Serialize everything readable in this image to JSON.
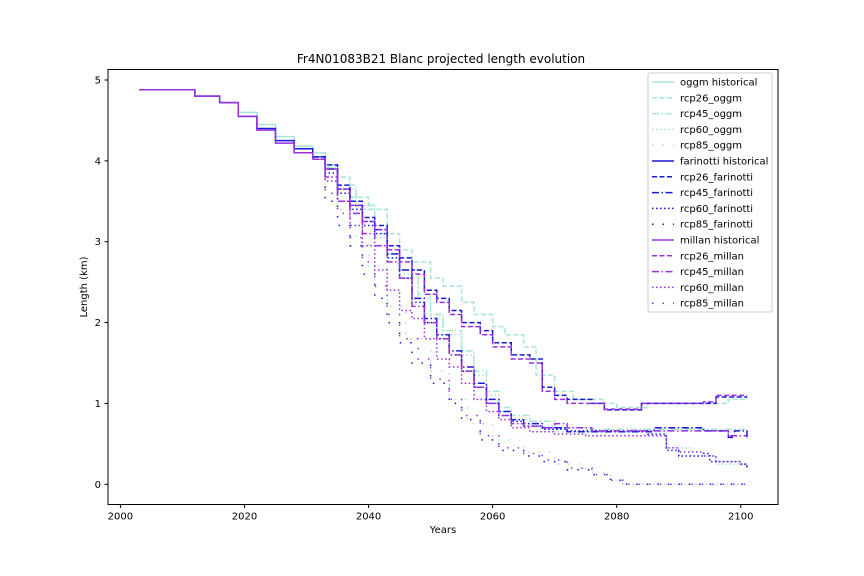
{
  "chart_data": {
    "type": "line",
    "title": "Fr4N01083B21 Blanc projected length evolution",
    "xlabel": "Years",
    "ylabel": "Length (km)",
    "xlim": [
      1998,
      2106
    ],
    "ylim": [
      -0.25,
      5.13
    ],
    "xticks": [
      "2000",
      "2020",
      "2040",
      "2060",
      "2080",
      "2100"
    ],
    "yticks": [
      "0",
      "1",
      "2",
      "3",
      "4",
      "5"
    ],
    "grid": false,
    "legend_position": "top-right",
    "colors": {
      "oggm": "#a8e4d8",
      "farinotti": "#1a1ad6",
      "millan": "#9b30e0",
      "axis": "#000000"
    },
    "series": [
      {
        "name": "oggm historical",
        "group": "oggm",
        "dash": "solid",
        "x": [
          2003,
          2011,
          2012,
          2015,
          2016,
          2018,
          2019,
          2021,
          2022,
          2024,
          2025,
          2027,
          2028,
          2030,
          2031
        ],
        "y": [
          4.88,
          4.88,
          4.8,
          4.8,
          4.72,
          4.72,
          4.6,
          4.6,
          4.45,
          4.45,
          4.3,
          4.3,
          4.18,
          4.18,
          4.1
        ]
      },
      {
        "name": "rcp26_oggm",
        "group": "oggm",
        "dash": "dashed",
        "x": [
          2031,
          2033,
          2035,
          2037,
          2040,
          2043,
          2045,
          2047,
          2050,
          2052,
          2055,
          2057,
          2060,
          2062,
          2065,
          2067,
          2070,
          2073,
          2075,
          2078,
          2080,
          2083,
          2085,
          2090,
          2095,
          2098,
          2101
        ],
        "y": [
          4.1,
          3.95,
          3.8,
          3.55,
          3.4,
          3.1,
          2.9,
          2.75,
          2.55,
          2.45,
          2.25,
          2.1,
          1.95,
          1.85,
          1.7,
          1.35,
          1.15,
          1.05,
          1.05,
          1.0,
          0.95,
          0.95,
          1.0,
          1.0,
          1.0,
          1.05,
          1.1
        ]
      },
      {
        "name": "rcp45_oggm",
        "group": "oggm",
        "dash": "dashdot",
        "x": [
          2031,
          2033,
          2035,
          2038,
          2041,
          2043,
          2045,
          2048,
          2050,
          2052,
          2055,
          2057,
          2059,
          2061,
          2063,
          2066,
          2070,
          2075,
          2080,
          2085,
          2090,
          2095,
          2101
        ],
        "y": [
          4.1,
          3.92,
          3.7,
          3.45,
          3.1,
          2.85,
          2.65,
          2.35,
          2.1,
          1.9,
          1.65,
          1.4,
          1.15,
          0.95,
          0.85,
          0.78,
          0.7,
          0.68,
          0.68,
          0.68,
          0.68,
          0.68,
          0.6
        ]
      },
      {
        "name": "rcp60_oggm",
        "group": "oggm",
        "dash": "dotted",
        "x": [
          2031,
          2033,
          2035,
          2038,
          2041,
          2043,
          2045,
          2048,
          2050,
          2052,
          2055,
          2057,
          2059,
          2061,
          2063,
          2066,
          2070,
          2075,
          2080,
          2085,
          2088,
          2092,
          2096,
          2101
        ],
        "y": [
          4.1,
          3.9,
          3.65,
          3.4,
          3.05,
          2.8,
          2.6,
          2.3,
          2.05,
          1.85,
          1.6,
          1.35,
          1.1,
          0.9,
          0.8,
          0.72,
          0.65,
          0.65,
          0.65,
          0.65,
          0.45,
          0.35,
          0.25,
          0.2
        ]
      },
      {
        "name": "rcp85_oggm",
        "group": "oggm",
        "dash": "sparse",
        "x": [
          2031,
          2033,
          2035,
          2038,
          2040,
          2043,
          2046,
          2050,
          2053,
          2056,
          2060,
          2065,
          2070,
          2075,
          2079,
          2081,
          2090,
          2101
        ],
        "y": [
          4.1,
          3.8,
          3.4,
          3.0,
          2.7,
          2.2,
          1.8,
          1.4,
          1.05,
          0.75,
          0.55,
          0.4,
          0.25,
          0.15,
          0.05,
          0.0,
          0.0,
          0.0
        ]
      },
      {
        "name": "farinotti historical",
        "group": "farinotti",
        "dash": "solid",
        "x": [
          2003,
          2011,
          2012,
          2015,
          2016,
          2018,
          2019,
          2021,
          2022,
          2024,
          2025,
          2027,
          2028,
          2030,
          2031
        ],
        "y": [
          4.88,
          4.88,
          4.8,
          4.8,
          4.72,
          4.72,
          4.55,
          4.55,
          4.4,
          4.4,
          4.25,
          4.25,
          4.15,
          4.15,
          4.05
        ]
      },
      {
        "name": "rcp26_farinotti",
        "group": "farinotti",
        "dash": "dashed",
        "x": [
          2031,
          2033,
          2035,
          2037,
          2039,
          2041,
          2043,
          2045,
          2047,
          2049,
          2051,
          2053,
          2055,
          2058,
          2060,
          2063,
          2066,
          2068,
          2070,
          2072,
          2076,
          2078,
          2082,
          2084,
          2090,
          2094,
          2096,
          2098,
          2101
        ],
        "y": [
          4.05,
          3.95,
          3.7,
          3.5,
          3.3,
          3.2,
          2.95,
          2.8,
          2.65,
          2.4,
          2.3,
          2.15,
          2.0,
          1.9,
          1.75,
          1.6,
          1.55,
          1.2,
          1.1,
          1.05,
          1.0,
          0.92,
          0.92,
          1.0,
          1.0,
          1.0,
          1.08,
          1.08,
          1.08
        ]
      },
      {
        "name": "rcp45_farinotti",
        "group": "farinotti",
        "dash": "dashdot",
        "x": [
          2031,
          2033,
          2035,
          2037,
          2039,
          2041,
          2043,
          2045,
          2047,
          2049,
          2051,
          2053,
          2055,
          2057,
          2059,
          2061,
          2063,
          2065,
          2068,
          2072,
          2076,
          2080,
          2084,
          2086,
          2090,
          2091,
          2094,
          2096,
          2098,
          2099,
          2101
        ],
        "y": [
          4.05,
          3.9,
          3.65,
          3.45,
          3.25,
          3.15,
          2.85,
          2.65,
          2.3,
          2.05,
          1.85,
          1.65,
          1.45,
          1.25,
          1.05,
          0.9,
          0.8,
          0.75,
          0.7,
          0.65,
          0.65,
          0.65,
          0.65,
          0.7,
          0.7,
          0.7,
          0.66,
          0.66,
          0.58,
          0.66,
          0.58
        ]
      },
      {
        "name": "rcp60_farinotti",
        "group": "farinotti",
        "dash": "dotted",
        "x": [
          2031,
          2033,
          2035,
          2037,
          2039,
          2041,
          2043,
          2045,
          2047,
          2049,
          2051,
          2053,
          2055,
          2057,
          2059,
          2061,
          2063,
          2065,
          2068,
          2072,
          2078,
          2083,
          2085,
          2088,
          2090,
          2092,
          2094,
          2095,
          2100,
          2101
        ],
        "y": [
          4.05,
          3.85,
          3.6,
          3.4,
          3.2,
          3.1,
          2.8,
          2.55,
          2.25,
          2.0,
          1.8,
          1.6,
          1.4,
          1.2,
          1.0,
          0.85,
          0.78,
          0.72,
          0.68,
          0.66,
          0.66,
          0.66,
          0.62,
          0.42,
          0.35,
          0.35,
          0.38,
          0.28,
          0.25,
          0.2
        ]
      },
      {
        "name": "rcp85_farinotti",
        "group": "farinotti",
        "dash": "sparse",
        "x": [
          2031,
          2033,
          2035,
          2037,
          2039,
          2041,
          2043,
          2045,
          2047,
          2050,
          2053,
          2055,
          2058,
          2061,
          2065,
          2068,
          2072,
          2076,
          2079,
          2081,
          2090,
          2101
        ],
        "y": [
          4.05,
          3.5,
          3.2,
          2.95,
          2.6,
          2.3,
          2.0,
          1.75,
          1.5,
          1.25,
          1.0,
          0.8,
          0.55,
          0.42,
          0.35,
          0.28,
          0.18,
          0.12,
          0.05,
          0.0,
          0.0,
          0.0
        ]
      },
      {
        "name": "millan historical",
        "group": "millan",
        "dash": "solid",
        "x": [
          2003,
          2011,
          2012,
          2015,
          2016,
          2018,
          2019,
          2021,
          2022,
          2024,
          2025,
          2027,
          2028,
          2030,
          2031
        ],
        "y": [
          4.88,
          4.88,
          4.8,
          4.8,
          4.72,
          4.72,
          4.55,
          4.55,
          4.38,
          4.38,
          4.22,
          4.22,
          4.1,
          4.1,
          4.02
        ]
      },
      {
        "name": "rcp26_millan",
        "group": "millan",
        "dash": "dashed",
        "x": [
          2031,
          2033,
          2035,
          2037,
          2039,
          2041,
          2043,
          2045,
          2047,
          2049,
          2051,
          2053,
          2055,
          2058,
          2060,
          2063,
          2066,
          2068,
          2070,
          2072,
          2076,
          2078,
          2082,
          2084,
          2090,
          2094,
          2096,
          2098,
          2101
        ],
        "y": [
          4.02,
          3.9,
          3.65,
          3.45,
          3.25,
          3.15,
          2.9,
          2.75,
          2.6,
          2.35,
          2.25,
          2.1,
          1.95,
          1.85,
          1.7,
          1.55,
          1.5,
          1.15,
          1.05,
          1.0,
          1.0,
          0.93,
          0.93,
          1.0,
          1.0,
          1.02,
          1.1,
          1.1,
          1.1
        ]
      },
      {
        "name": "rcp45_millan",
        "group": "millan",
        "dash": "dashdot",
        "x": [
          2031,
          2033,
          2035,
          2037,
          2039,
          2041,
          2043,
          2045,
          2047,
          2049,
          2051,
          2053,
          2055,
          2057,
          2059,
          2061,
          2063,
          2065,
          2068,
          2070,
          2072,
          2076,
          2080,
          2084,
          2088,
          2092,
          2096,
          2098,
          2101
        ],
        "y": [
          4.02,
          3.8,
          3.5,
          3.35,
          3.1,
          2.95,
          2.75,
          2.55,
          2.2,
          2.0,
          1.8,
          1.6,
          1.4,
          1.2,
          1.0,
          0.85,
          0.75,
          0.72,
          0.7,
          0.75,
          0.7,
          0.66,
          0.66,
          0.66,
          0.66,
          0.66,
          0.66,
          0.6,
          0.6
        ]
      },
      {
        "name": "rcp60_millan",
        "group": "millan",
        "dash": "dotted",
        "x": [
          2031,
          2033,
          2035,
          2037,
          2039,
          2041,
          2043,
          2045,
          2047,
          2049,
          2051,
          2053,
          2055,
          2057,
          2059,
          2061,
          2063,
          2066,
          2070,
          2075,
          2080,
          2085,
          2088,
          2090,
          2094,
          2096,
          2100,
          2101
        ],
        "y": [
          4.02,
          3.75,
          3.5,
          3.2,
          2.95,
          2.65,
          2.4,
          2.15,
          2.05,
          1.8,
          1.55,
          1.45,
          1.25,
          1.05,
          0.9,
          0.8,
          0.7,
          0.65,
          0.62,
          0.6,
          0.6,
          0.6,
          0.45,
          0.4,
          0.35,
          0.28,
          0.25,
          0.2
        ]
      },
      {
        "name": "rcp85_millan",
        "group": "millan",
        "dash": "sparse",
        "x": [
          2031,
          2033,
          2035,
          2037,
          2039,
          2041,
          2043,
          2045,
          2048,
          2050,
          2053,
          2055,
          2058,
          2061,
          2065,
          2068,
          2072,
          2076,
          2079,
          2081,
          2090,
          2101
        ],
        "y": [
          4.02,
          3.6,
          3.35,
          3.05,
          2.75,
          2.45,
          2.1,
          1.8,
          1.55,
          1.3,
          1.05,
          0.85,
          0.6,
          0.45,
          0.38,
          0.3,
          0.2,
          0.12,
          0.05,
          0.0,
          0.0,
          0.0
        ]
      }
    ]
  }
}
